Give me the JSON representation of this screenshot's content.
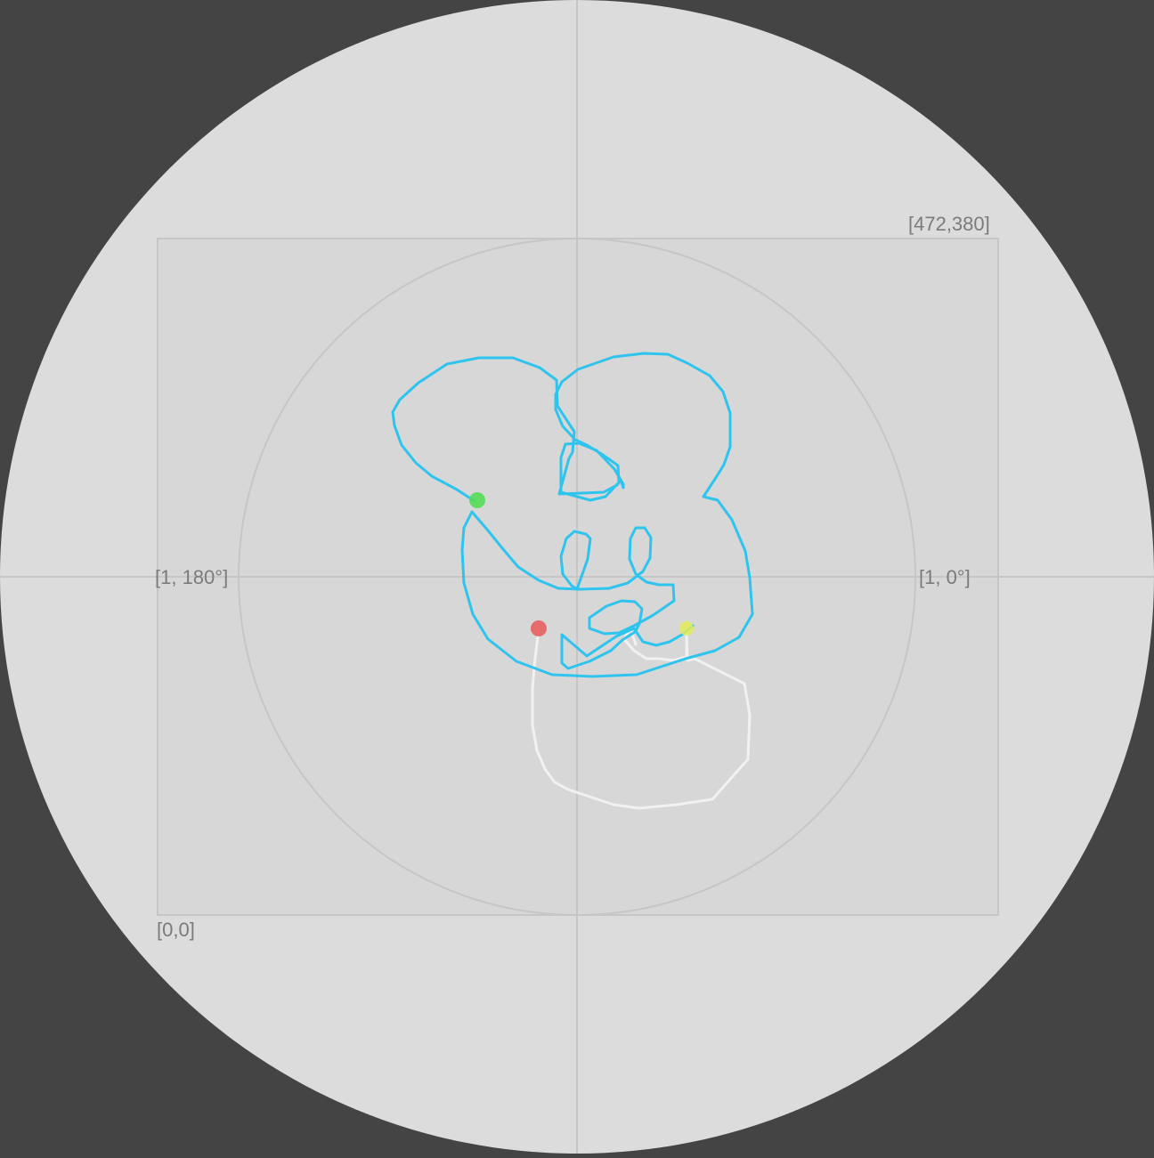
{
  "bounds": {
    "max_label": "[472,380]",
    "min_label": "[0,0]"
  },
  "polar": {
    "radius_180_label": "[1, 180°]",
    "radius_0_label": "[1, 0°]"
  },
  "colors": {
    "background": "#444444",
    "disk": "#dcdcdc",
    "rect_fill": "#d7d7d7",
    "grid": "#c6c6c6",
    "path_main": "#2ec4ee",
    "path_ghost": "#f1f1f1",
    "marker_start": "#55dd55",
    "marker_end": "#e86060",
    "marker_current": "#e4ec55"
  },
  "markers": [
    {
      "name": "start-marker",
      "kind": "start"
    },
    {
      "name": "end-marker",
      "kind": "end"
    },
    {
      "name": "current-marker",
      "kind": "current"
    }
  ]
}
